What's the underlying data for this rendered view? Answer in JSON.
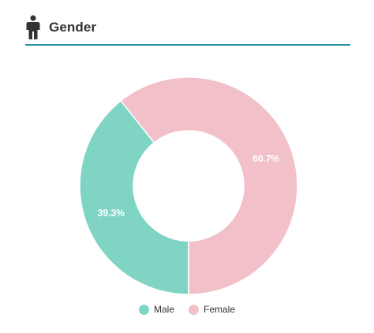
{
  "header": {
    "title": "Gender",
    "icon": "person-icon",
    "accent": "#2a8fa3"
  },
  "chart_data": {
    "type": "pie",
    "title": "Gender",
    "donut": true,
    "categories": [
      "Male",
      "Female"
    ],
    "values": [
      39.3,
      60.7
    ],
    "labels": [
      "39.3%",
      "60.7%"
    ],
    "colors": [
      "#80d4c4",
      "#f2c0c8"
    ],
    "legend_position": "bottom"
  }
}
